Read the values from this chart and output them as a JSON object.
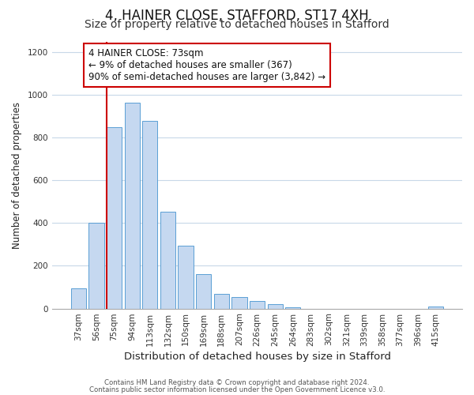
{
  "title": "4, HAINER CLOSE, STAFFORD, ST17 4XH",
  "subtitle": "Size of property relative to detached houses in Stafford",
  "xlabel": "Distribution of detached houses by size in Stafford",
  "ylabel": "Number of detached properties",
  "bar_labels": [
    "37sqm",
    "56sqm",
    "75sqm",
    "94sqm",
    "113sqm",
    "132sqm",
    "150sqm",
    "169sqm",
    "188sqm",
    "207sqm",
    "226sqm",
    "245sqm",
    "264sqm",
    "283sqm",
    "302sqm",
    "321sqm",
    "339sqm",
    "358sqm",
    "377sqm",
    "396sqm",
    "415sqm"
  ],
  "bar_values": [
    95,
    400,
    850,
    965,
    880,
    455,
    295,
    160,
    70,
    55,
    35,
    20,
    5,
    0,
    0,
    0,
    0,
    0,
    0,
    0,
    10
  ],
  "bar_color": "#c5d8f0",
  "bar_edge_color": "#5a9fd4",
  "vline_color": "#cc0000",
  "annotation_text": "4 HAINER CLOSE: 73sqm\n← 9% of detached houses are smaller (367)\n90% of semi-detached houses are larger (3,842) →",
  "annotation_box_edgecolor": "#cc0000",
  "annotation_fontsize": 8.5,
  "title_fontsize": 12,
  "subtitle_fontsize": 10,
  "xlabel_fontsize": 9.5,
  "ylabel_fontsize": 8.5,
  "tick_fontsize": 7.5,
  "ylim": [
    0,
    1250
  ],
  "yticks": [
    0,
    200,
    400,
    600,
    800,
    1000,
    1200
  ],
  "footer_line1": "Contains HM Land Registry data © Crown copyright and database right 2024.",
  "footer_line2": "Contains public sector information licensed under the Open Government Licence v3.0.",
  "background_color": "#ffffff",
  "grid_color": "#c8d8e8"
}
